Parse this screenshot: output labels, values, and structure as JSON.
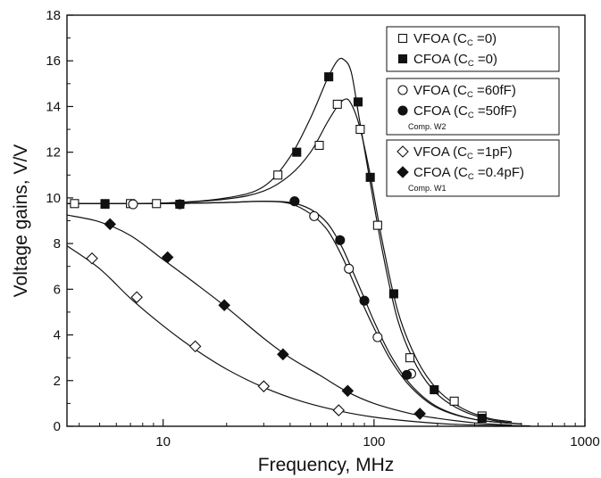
{
  "chart_data": {
    "type": "line",
    "xlabel": "Frequency, MHz",
    "ylabel": "Voltage gains,  V/V",
    "x_scale": "log",
    "xlim": [
      3.5,
      1000
    ],
    "ylim": [
      0,
      18
    ],
    "x_ticks": [
      10,
      100,
      1000
    ],
    "x_tick_labels": [
      "10",
      "100",
      "1000"
    ],
    "y_ticks": [
      0,
      2,
      4,
      6,
      8,
      10,
      12,
      14,
      16,
      18
    ],
    "y_tick_labels": [
      "0",
      "2",
      "4",
      "6",
      "8",
      "10",
      "12",
      "14",
      "16",
      "18"
    ],
    "grid": false,
    "legend_groups": [
      {
        "note": "",
        "entries": [
          {
            "marker": "open-square",
            "label_main": "VFOA (C",
            "label_sub": "C",
            "label_rest": " =0)"
          },
          {
            "marker": "filled-square",
            "label_main": "CFOA (C",
            "label_sub": "C",
            "label_rest": " =0)"
          }
        ]
      },
      {
        "note": "Comp. W2",
        "entries": [
          {
            "marker": "open-circle",
            "label_main": "VFOA (C",
            "label_sub": "C",
            "label_rest": " =60fF)"
          },
          {
            "marker": "filled-circle",
            "label_main": "CFOA (C",
            "label_sub": "C",
            "label_rest": " =50fF)"
          }
        ]
      },
      {
        "note": "Comp. W1",
        "entries": [
          {
            "marker": "open-diamond",
            "label_main": "VFOA (C",
            "label_sub": "C",
            "label_rest": " =1pF)"
          },
          {
            "marker": "filled-diamond",
            "label_main": "CFOA (C",
            "label_sub": "C",
            "label_rest": " =0.4pF)"
          }
        ]
      }
    ],
    "series": [
      {
        "marker": "open-square",
        "curve_x": [
          3.5,
          10,
          20,
          30,
          40,
          50,
          60,
          67,
          72,
          77,
          85,
          95,
          110,
          130,
          160,
          200,
          260,
          350,
          450
        ],
        "curve_y": [
          9.75,
          9.77,
          9.95,
          10.3,
          11.0,
          12.0,
          13.3,
          14.0,
          14.3,
          14.2,
          13.2,
          11.2,
          8.0,
          5.0,
          2.9,
          1.6,
          0.8,
          0.35,
          0.2
        ],
        "points_x": [
          3.8,
          5.3,
          7.0,
          9.3,
          12.0,
          35.0,
          55.0,
          67.0,
          86.0,
          104.0,
          148.0,
          240.0,
          325.0
        ],
        "points_y": [
          9.75,
          9.75,
          9.75,
          9.75,
          9.72,
          11.0,
          12.3,
          14.1,
          13.0,
          8.8,
          3.0,
          1.1,
          0.45
        ]
      },
      {
        "marker": "filled-square",
        "curve_x": [
          3.5,
          10,
          20,
          30,
          40,
          50,
          60,
          67,
          72,
          78,
          85,
          95,
          110,
          130,
          160,
          200,
          260,
          350,
          450
        ],
        "curve_y": [
          9.75,
          9.77,
          10.0,
          10.5,
          11.8,
          13.5,
          15.2,
          16.0,
          16.05,
          15.5,
          13.5,
          10.9,
          7.6,
          4.6,
          2.6,
          1.4,
          0.7,
          0.3,
          0.15
        ],
        "points_x": [
          5.3,
          43.0,
          61.0,
          84.0,
          96.0,
          124.0,
          193.0,
          325.0
        ],
        "points_y": [
          9.72,
          12.0,
          15.3,
          14.2,
          10.9,
          5.8,
          1.6,
          0.35
        ]
      },
      {
        "marker": "open-circle",
        "curve_x": [
          3.5,
          10,
          20,
          30,
          40,
          50,
          60,
          70,
          80,
          90,
          100,
          120,
          150,
          200,
          300,
          500
        ],
        "curve_y": [
          9.75,
          9.75,
          9.8,
          9.85,
          9.75,
          9.3,
          8.6,
          7.5,
          6.3,
          5.2,
          4.3,
          2.9,
          1.7,
          0.8,
          0.3,
          0.1
        ],
        "points_x": [
          7.2,
          52.0,
          76.0,
          104.0,
          150.0
        ],
        "points_y": [
          9.72,
          9.2,
          6.9,
          3.9,
          2.3
        ]
      },
      {
        "marker": "filled-circle",
        "curve_x": [
          3.5,
          10,
          20,
          30,
          40,
          50,
          60,
          70,
          80,
          90,
          100,
          120,
          150,
          200,
          300,
          500
        ],
        "curve_y": [
          9.75,
          9.75,
          9.8,
          9.85,
          9.8,
          9.5,
          8.9,
          7.9,
          6.7,
          5.6,
          4.6,
          3.1,
          1.8,
          0.85,
          0.3,
          0.1
        ],
        "points_x": [
          12.0,
          42.0,
          69.0,
          90.0,
          143.0
        ],
        "points_y": [
          9.72,
          9.85,
          8.15,
          5.5,
          2.25
        ]
      },
      {
        "marker": "open-diamond",
        "curve_x": [
          3.5,
          5,
          7,
          10,
          14,
          20,
          30,
          45,
          70,
          100,
          150,
          250,
          550
        ],
        "curve_y": [
          7.9,
          6.9,
          5.6,
          4.4,
          3.4,
          2.5,
          1.7,
          1.1,
          0.65,
          0.4,
          0.22,
          0.08,
          0.02
        ],
        "points_x": [
          4.6,
          7.5,
          14.2,
          30.0,
          68.0
        ],
        "points_y": [
          7.35,
          5.65,
          3.5,
          1.75,
          0.7
        ]
      },
      {
        "marker": "filled-diamond",
        "curve_x": [
          3.5,
          5,
          7,
          10,
          14,
          20,
          30,
          40,
          55,
          75,
          100,
          150,
          200,
          300,
          450
        ],
        "curve_y": [
          9.25,
          8.95,
          8.35,
          7.3,
          6.3,
          5.2,
          3.85,
          3.0,
          2.25,
          1.5,
          1.0,
          0.55,
          0.35,
          0.15,
          0.05
        ],
        "points_x": [
          5.6,
          10.5,
          19.5,
          37.0,
          75.0,
          165.0
        ],
        "points_y": [
          8.85,
          7.4,
          5.3,
          3.15,
          1.55,
          0.55
        ]
      }
    ]
  }
}
